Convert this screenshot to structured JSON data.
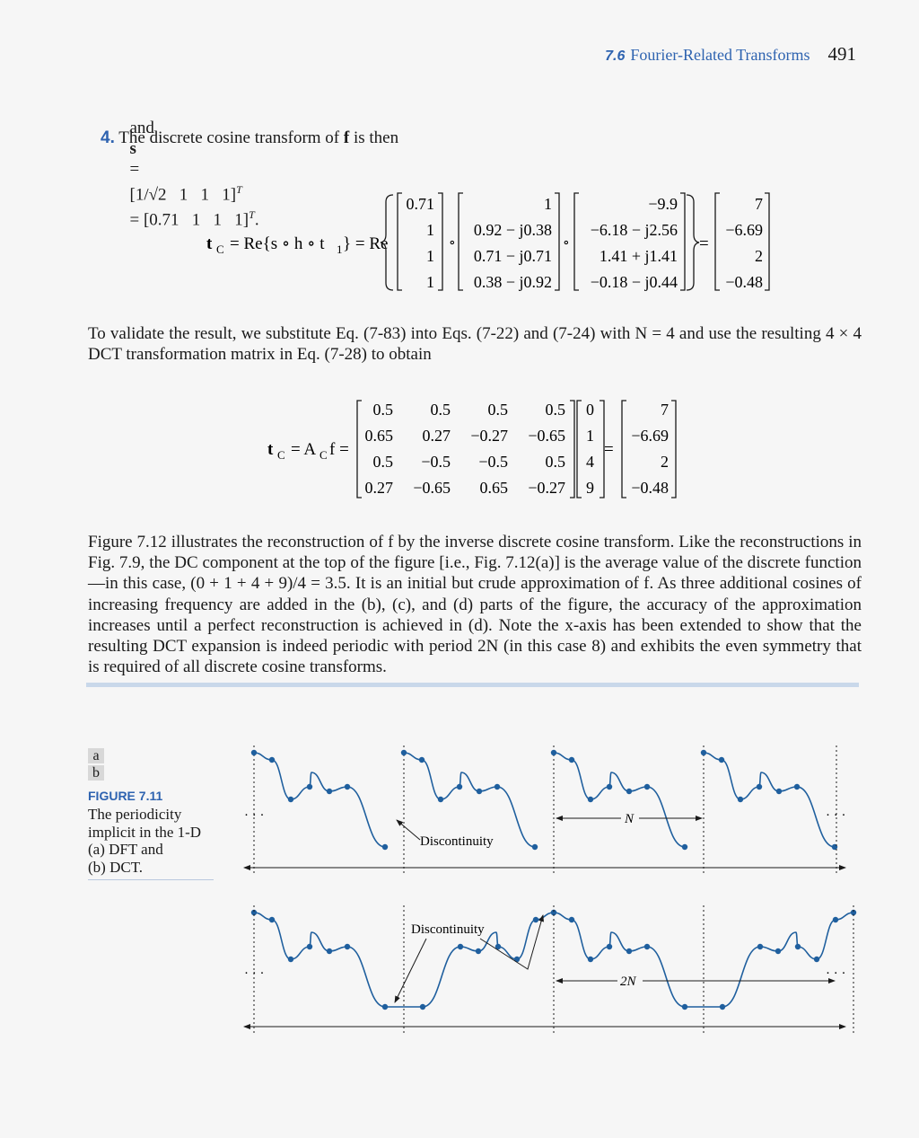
{
  "header": {
    "section": "7.6",
    "title": "Fourier-Related Transforms",
    "page_number": "491"
  },
  "line_s": {
    "and": "and",
    "bold_s": "s",
    "eq": "=",
    "vec1": "[1/√2   1   1   1]",
    "T": "T",
    "vec2": "= [0.71   1   1   1]",
    "period": "."
  },
  "step4": {
    "number": "4.",
    "text_pre": "The discrete cosine transform of ",
    "bold_f": "f",
    "text_post": " is then"
  },
  "eq1": {
    "lhs": "t",
    "lhs_sub": "C",
    "mid": "= Re{s ∘ h ∘ t",
    "mid_sub": "1",
    "mid_end": "} = Re",
    "s_vec": [
      "0.71",
      "1",
      "1",
      "1"
    ],
    "h_vec": [
      "1",
      "0.92 − j0.38",
      "0.71 − j0.71",
      "0.38 − j0.92"
    ],
    "t1_vec": [
      "−9.9",
      "−6.18 − j2.56",
      "1.41 + j1.41",
      "−0.18 − j0.44"
    ],
    "result": [
      "7",
      "−6.69",
      "2",
      "−0.48"
    ],
    "op": "∘",
    "equals": "="
  },
  "para1": "To validate the result, we substitute Eq. (7-83) into Eqs. (7-22) and (7-24) with N = 4 and use the resulting 4 × 4 DCT transformation matrix in Eq. (7-28) to obtain",
  "eq2": {
    "lhs": "t",
    "lhs_sub": "C",
    "mid": "= A",
    "mid_sub": "C",
    "mid_f": "f =",
    "matrix": [
      [
        "0.5",
        "0.5",
        "0.5",
        "0.5"
      ],
      [
        "0.65",
        "0.27",
        "−0.27",
        "−0.65"
      ],
      [
        "0.5",
        "−0.5",
        "−0.5",
        "0.5"
      ],
      [
        "0.27",
        "−0.65",
        "0.65",
        "−0.27"
      ]
    ],
    "f_vec": [
      "0",
      "1",
      "4",
      "9"
    ],
    "result": [
      "7",
      "−6.69",
      "2",
      "−0.48"
    ],
    "equals": "="
  },
  "para2": "Figure 7.12 illustrates the reconstruction of f by the inverse discrete cosine transform. Like the reconstructions in Fig. 7.9, the DC component at the top of the figure [i.e., Fig. 7.12(a)] is the average value of the discrete function—in this case, (0 + 1 + 4 + 9)/4 = 3.5. It is an initial but crude approximation of f. As three additional cosines of increasing frequency are added in the (b), (c), and (d) parts of the figure, the accuracy of the approximation increases until a perfect reconstruction is achieved in (d). Note the x-axis has been extended to show that the resulting DCT expansion is indeed periodic with period 2N (in this case 8) and exhibits the even symmetry that is required of all discrete cosine transforms.",
  "figure": {
    "sub_a": "a",
    "sub_b": "b",
    "title": "FIGURE 7.11",
    "caption_lines": [
      "The periodicity",
      "implicit in the 1-D",
      "(a) DFT and",
      "(b) DCT."
    ],
    "label_discontinuity_a": "Discontinuity",
    "label_N": "N",
    "label_discontinuity_b": "Discontinuity",
    "label_2N": "2N",
    "ellipsis": "· · ·",
    "curve_color": "#1f5f9e"
  }
}
